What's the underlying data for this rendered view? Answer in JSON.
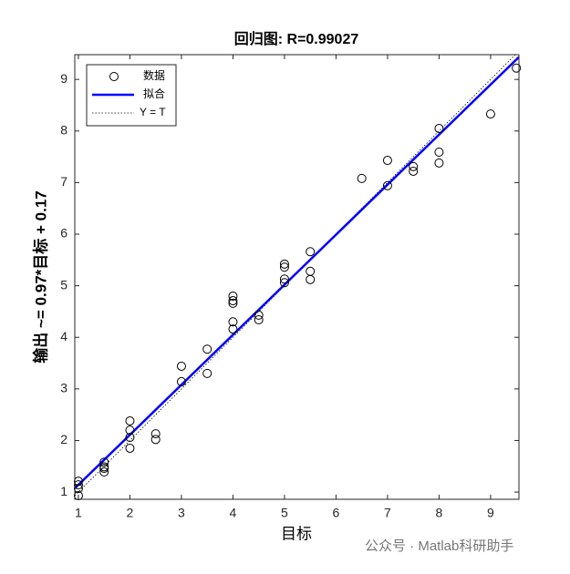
{
  "chart_data": {
    "type": "scatter",
    "title": "回归图: R=0.99027",
    "x_label": "目标",
    "y_label": "输出 ~= 0.97*目标 + 0.17",
    "watermark": "公众号 · Matlab科研助手",
    "xlim": [
      0.93,
      9.55
    ],
    "ylim": [
      0.86,
      9.48
    ],
    "xticks": [
      1,
      2,
      3,
      4,
      5,
      6,
      7,
      8,
      9
    ],
    "yticks": [
      1,
      2,
      3,
      4,
      5,
      6,
      7,
      8,
      9
    ],
    "legend_position": "upper-left",
    "series": [
      {
        "name": "数据",
        "color": "#000000",
        "x": [
          1,
          1,
          1,
          1,
          1.5,
          1.5,
          1.5,
          1.5,
          2,
          2,
          2,
          2,
          2.5,
          2.5,
          3,
          3,
          3.5,
          3.5,
          4,
          4,
          4,
          4,
          4,
          4.5,
          4.5,
          5,
          5,
          5,
          5,
          5.5,
          5.5,
          5.5,
          6.5,
          7,
          7,
          7.5,
          7.5,
          8,
          8,
          8,
          9,
          9.5
        ],
        "values": [
          1.21,
          1.07,
          0.93,
          1.14,
          1.58,
          1.49,
          1.39,
          1.46,
          2.38,
          2.2,
          2.06,
          1.85,
          2.13,
          2.02,
          3.44,
          3.14,
          3.77,
          3.3,
          4.8,
          4.71,
          4.66,
          4.3,
          4.16,
          4.43,
          4.34,
          5.42,
          5.36,
          5.13,
          5.06,
          5.66,
          5.28,
          5.12,
          7.08,
          7.43,
          6.94,
          7.31,
          7.22,
          8.05,
          7.59,
          7.38,
          8.33,
          9.22
        ]
      },
      {
        "name": "拟合",
        "color": "#0000ff",
        "slope": 0.97,
        "intercept": 0.17
      },
      {
        "name": "Y = T",
        "color": "#000000",
        "slope": 1,
        "intercept": 0
      }
    ]
  }
}
